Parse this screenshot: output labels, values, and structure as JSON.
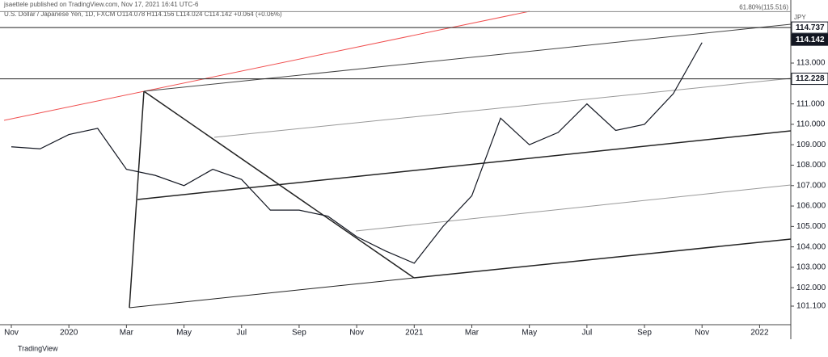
{
  "chart_data": {
    "type": "line",
    "title": "jsaettele published on TradingView.com, Nov 17, 2021 16:41 UTC-6",
    "subtitle": "U.S. Dollar / Japanese Yen, 1D, FXCM O114.078 H114.156 L114.024 C114.142 +0.064 (+0.06%)",
    "currency": "JPY",
    "footer": "TradingView",
    "x": [
      "2019-11",
      "2019-12",
      "2020-01",
      "2020-02",
      "2020-03",
      "2020-04",
      "2020-05",
      "2020-06",
      "2020-07",
      "2020-08",
      "2020-09",
      "2020-10",
      "2020-11",
      "2020-12",
      "2021-01",
      "2021-02",
      "2021-03",
      "2021-04",
      "2021-05",
      "2021-06",
      "2021-07",
      "2021-08",
      "2021-09",
      "2021-10",
      "2021-11"
    ],
    "series": [
      {
        "name": "USDJPY",
        "color": "#131722",
        "values": [
          108.9,
          108.8,
          109.5,
          109.8,
          107.8,
          107.5,
          107.0,
          107.8,
          107.3,
          105.8,
          105.8,
          105.5,
          104.5,
          103.8,
          103.2,
          105.0,
          106.5,
          110.3,
          109.0,
          109.6,
          111.0,
          109.7,
          110.0,
          111.5,
          114.0
        ]
      }
    ],
    "xlim": [
      "2019-11",
      "2022-02"
    ],
    "xticks": [
      {
        "value": "2019-11",
        "label": "Nov"
      },
      {
        "value": "2020-01",
        "label": "2020"
      },
      {
        "value": "2020-03",
        "label": "Mar"
      },
      {
        "value": "2020-05",
        "label": "May"
      },
      {
        "value": "2020-07",
        "label": "Jul"
      },
      {
        "value": "2020-09",
        "label": "Sep"
      },
      {
        "value": "2020-11",
        "label": "Nov"
      },
      {
        "value": "2021-01",
        "label": "2021"
      },
      {
        "value": "2021-03",
        "label": "Mar"
      },
      {
        "value": "2021-05",
        "label": "May"
      },
      {
        "value": "2021-07",
        "label": "Jul"
      },
      {
        "value": "2021-09",
        "label": "Sep"
      },
      {
        "value": "2021-11",
        "label": "Nov"
      },
      {
        "value": "2022-01",
        "label": "2022"
      }
    ],
    "ylim": [
      100.19,
      115.77
    ],
    "yticks": [
      {
        "value": 101.1,
        "label": "101.100"
      },
      {
        "value": 102,
        "label": "102.000"
      },
      {
        "value": 103,
        "label": "103.000"
      },
      {
        "value": 104,
        "label": "104.000"
      },
      {
        "value": 105,
        "label": "105.000"
      },
      {
        "value": 106,
        "label": "106.000"
      },
      {
        "value": 107,
        "label": "107.000"
      },
      {
        "value": 108,
        "label": "108.000"
      },
      {
        "value": 109,
        "label": "109.000"
      },
      {
        "value": 110,
        "label": "110.000"
      },
      {
        "value": 111,
        "label": "111.000"
      },
      {
        "value": 113,
        "label": "113.000"
      }
    ],
    "annotations": [
      {
        "value": 114.737,
        "label": "114.737"
      },
      {
        "value": 114.142,
        "label": "114.142"
      },
      {
        "value": 112.228,
        "label": "112.228"
      },
      {
        "value": 115.516,
        "label": "61.80%(115.516)"
      }
    ]
  }
}
